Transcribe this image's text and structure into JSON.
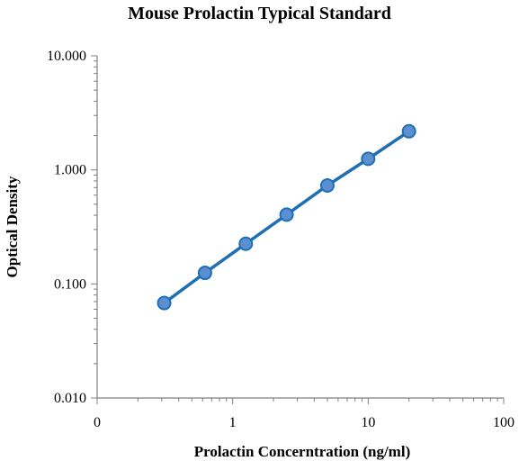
{
  "chart_data": {
    "type": "line",
    "title": "Mouse Prolactin Typical Standard",
    "xlabel": "Prolactin Concerntration (ng/ml)",
    "ylabel": "Optical Density",
    "x_scale": "log",
    "y_scale": "log",
    "xlim": [
      0.1,
      100
    ],
    "ylim": [
      0.01,
      10
    ],
    "x_ticks": [
      {
        "value": 0.1,
        "label": "0"
      },
      {
        "value": 1,
        "label": "1"
      },
      {
        "value": 10,
        "label": "10"
      },
      {
        "value": 100,
        "label": "100"
      }
    ],
    "y_ticks": [
      {
        "value": 0.01,
        "label": "0.010"
      },
      {
        "value": 0.1,
        "label": "0.100"
      },
      {
        "value": 1,
        "label": "1.000"
      },
      {
        "value": 10,
        "label": "10.000"
      }
    ],
    "grid": false,
    "series": [
      {
        "x": [
          0.3125,
          0.625,
          1.25,
          2.5,
          5,
          10,
          20
        ],
        "y": [
          0.068,
          0.125,
          0.225,
          0.405,
          0.73,
          1.25,
          2.18
        ],
        "color": "#1f6fb5",
        "marker_fill": "#5b8fd1"
      }
    ]
  }
}
